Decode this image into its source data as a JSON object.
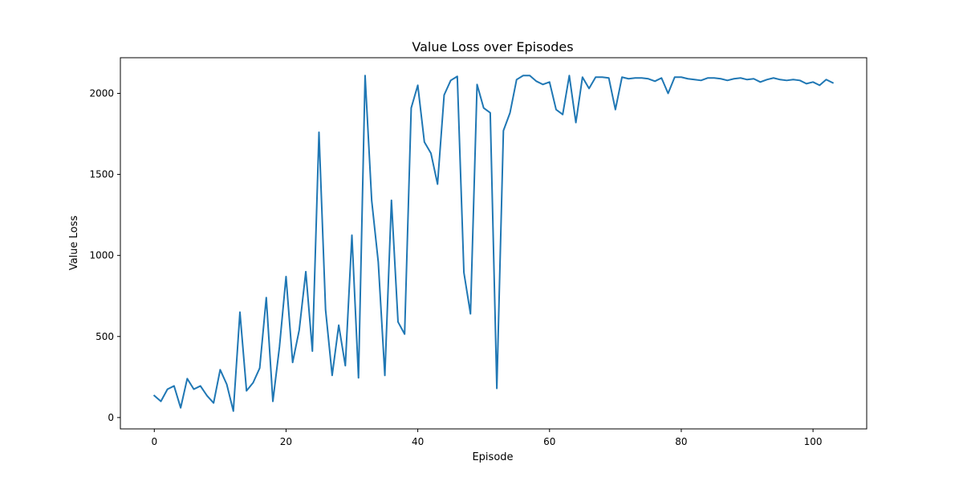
{
  "chart_data": {
    "type": "line",
    "title": "Value Loss over Episodes",
    "xlabel": "Episode",
    "ylabel": "Value Loss",
    "xlim": [
      -5.15,
      108.15
    ],
    "ylim": [
      -70,
      2220
    ],
    "xticks": [
      0,
      20,
      40,
      60,
      80,
      100
    ],
    "yticks": [
      0,
      500,
      1000,
      1500,
      2000
    ],
    "grid": false,
    "legend": "none",
    "series": [
      {
        "color": "#1f77b4",
        "x": [
          0,
          1,
          2,
          3,
          4,
          5,
          6,
          7,
          8,
          9,
          10,
          11,
          12,
          13,
          14,
          15,
          16,
          17,
          18,
          19,
          20,
          21,
          22,
          23,
          24,
          25,
          26,
          27,
          28,
          29,
          30,
          31,
          32,
          33,
          34,
          35,
          36,
          37,
          38,
          39,
          40,
          41,
          42,
          43,
          44,
          45,
          46,
          47,
          48,
          49,
          50,
          51,
          52,
          53,
          54,
          55,
          56,
          57,
          58,
          59,
          60,
          61,
          62,
          63,
          64,
          65,
          66,
          67,
          68,
          69,
          70,
          71,
          72,
          73,
          74,
          75,
          76,
          77,
          78,
          79,
          80,
          81,
          82,
          83,
          84,
          85,
          86,
          87,
          88,
          89,
          90,
          91,
          92,
          93,
          94,
          95,
          96,
          97,
          98,
          99,
          100,
          101,
          102,
          103
        ],
        "values": [
          135,
          100,
          175,
          195,
          60,
          240,
          175,
          195,
          135,
          90,
          295,
          205,
          40,
          650,
          165,
          215,
          305,
          740,
          100,
          435,
          870,
          340,
          540,
          900,
          410,
          1760,
          665,
          260,
          570,
          320,
          1125,
          245,
          2110,
          1340,
          960,
          260,
          1340,
          590,
          515,
          1910,
          2050,
          1700,
          1630,
          1440,
          1990,
          2080,
          2105,
          895,
          640,
          2055,
          1910,
          1880,
          180,
          1770,
          1880,
          2085,
          2110,
          2110,
          2075,
          2055,
          2070,
          1900,
          1870,
          2110,
          1820,
          2100,
          2030,
          2100,
          2100,
          2095,
          1900,
          2100,
          2090,
          2095,
          2095,
          2090,
          2075,
          2095,
          2000,
          2100,
          2100,
          2090,
          2085,
          2080,
          2095,
          2095,
          2090,
          2080,
          2090,
          2095,
          2085,
          2090,
          2070,
          2085,
          2095,
          2085,
          2080,
          2085,
          2080,
          2060,
          2070,
          2050,
          2085,
          2065
        ]
      }
    ]
  }
}
